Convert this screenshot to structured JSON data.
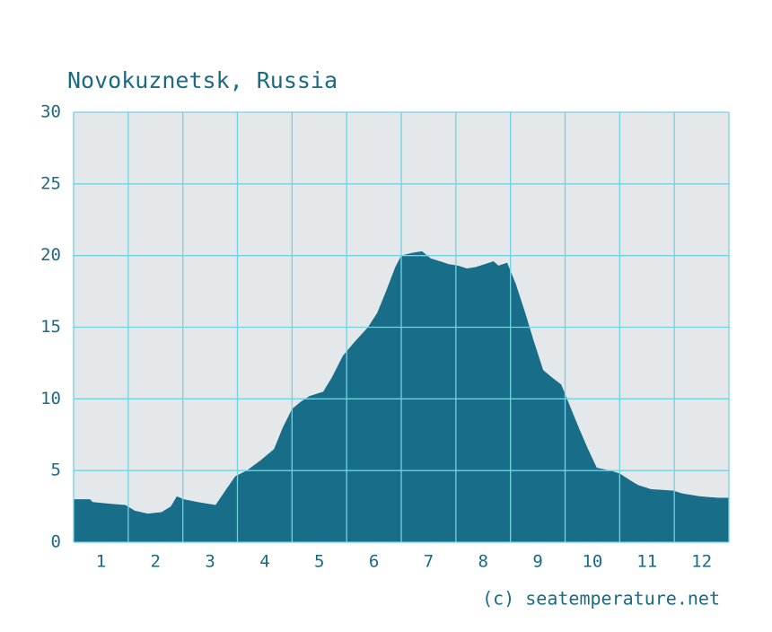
{
  "chart_data": {
    "type": "area",
    "title": "Novokuznetsk, Russia",
    "credit": "(c) seatemperature.net",
    "color": "#186e89",
    "grid": true,
    "xlim": [
      0,
      12
    ],
    "xticks": [
      {
        "value": 0.5,
        "label": "1"
      },
      {
        "value": 1.5,
        "label": "2"
      },
      {
        "value": 2.5,
        "label": "3"
      },
      {
        "value": 3.5,
        "label": "4"
      },
      {
        "value": 4.5,
        "label": "5"
      },
      {
        "value": 5.5,
        "label": "6"
      },
      {
        "value": 6.5,
        "label": "7"
      },
      {
        "value": 7.5,
        "label": "8"
      },
      {
        "value": 8.5,
        "label": "9"
      },
      {
        "value": 9.5,
        "label": "10"
      },
      {
        "value": 10.5,
        "label": "11"
      },
      {
        "value": 11.5,
        "label": "12"
      }
    ],
    "ylim": [
      0,
      30
    ],
    "yticks": [
      0,
      5,
      10,
      15,
      20,
      25,
      30
    ],
    "x": [
      0,
      0.3,
      0.35,
      0.62,
      0.95,
      1.12,
      1.36,
      1.61,
      1.78,
      1.89,
      2.02,
      2.27,
      2.6,
      2.76,
      2.96,
      3.17,
      3.42,
      3.67,
      3.83,
      4.0,
      4.16,
      4.32,
      4.57,
      4.73,
      4.93,
      5.15,
      5.39,
      5.56,
      5.72,
      5.89,
      6.0,
      6.21,
      6.38,
      6.54,
      6.71,
      6.87,
      7.04,
      7.2,
      7.36,
      7.53,
      7.69,
      7.78,
      7.94,
      8.1,
      8.27,
      8.43,
      8.6,
      8.76,
      8.93,
      9.09,
      9.25,
      9.42,
      9.58,
      9.83,
      10.0,
      10.16,
      10.33,
      10.57,
      10.98,
      11.15,
      11.47,
      11.8,
      12.0
    ],
    "values": [
      3.0,
      3.0,
      2.8,
      2.7,
      2.6,
      2.2,
      2.0,
      2.1,
      2.5,
      3.2,
      3.0,
      2.8,
      2.6,
      3.5,
      4.6,
      5.0,
      5.7,
      6.5,
      8.0,
      9.3,
      9.8,
      10.2,
      10.5,
      11.5,
      13.0,
      14.0,
      15.0,
      16.0,
      17.5,
      19.2,
      20.0,
      20.2,
      20.3,
      19.8,
      19.6,
      19.4,
      19.3,
      19.1,
      19.2,
      19.4,
      19.6,
      19.3,
      19.5,
      18.0,
      16.0,
      14.0,
      12.0,
      11.5,
      11.0,
      9.5,
      8.0,
      6.5,
      5.2,
      5.0,
      4.8,
      4.4,
      4.0,
      3.7,
      3.6,
      3.4,
      3.2,
      3.1,
      3.1
    ]
  }
}
